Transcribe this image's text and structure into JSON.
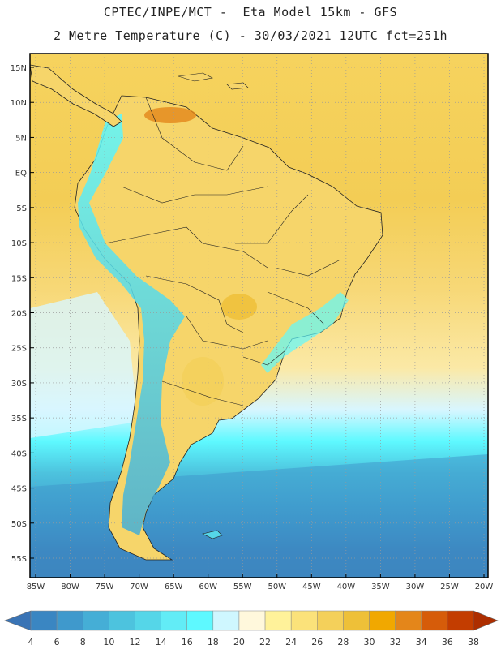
{
  "header": {
    "line1": "CPTEC/INPE/MCT -  Eta Model 15km - GFS",
    "line2": "2 Metre Temperature (C) - 30/03/2021 12UTC fct=251h"
  },
  "map": {
    "lat_ticks": [
      "15N",
      "10N",
      "5N",
      "EQ",
      "5S",
      "10S",
      "15S",
      "20S",
      "25S",
      "30S",
      "35S",
      "40S",
      "45S",
      "50S",
      "55S"
    ],
    "lon_ticks": [
      "85W",
      "80W",
      "75W",
      "70W",
      "65W",
      "60W",
      "55W",
      "50W",
      "45W",
      "40W",
      "35W",
      "30W",
      "25W",
      "20W"
    ]
  },
  "legend": {
    "values": [
      "4",
      "6",
      "8",
      "10",
      "12",
      "14",
      "16",
      "18",
      "20",
      "22",
      "24",
      "26",
      "28",
      "30",
      "32",
      "34",
      "36",
      "38"
    ],
    "colors": [
      "#3a74b5",
      "#3a86c2",
      "#3f99cc",
      "#45aed6",
      "#4dc3de",
      "#55d6e8",
      "#62ecf6",
      "#5ef9ff",
      "#cff7ff",
      "#fff8dc",
      "#fff29a",
      "#fbe27a",
      "#f4d05a",
      "#eec038",
      "#f1a800",
      "#e4861a",
      "#d65c0a",
      "#c33d00",
      "#ad2e00"
    ]
  }
}
